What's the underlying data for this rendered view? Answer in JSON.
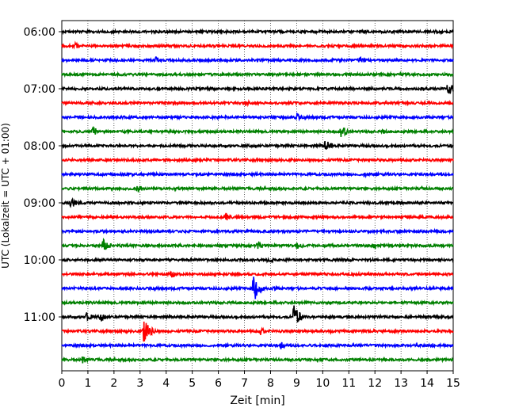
{
  "chart_data": {
    "type": "line",
    "title": "",
    "xlabel": "Zeit  [min]",
    "ylabel": "UTC (Lokalzeit = UTC + 01:00)",
    "xlim": [
      0,
      15
    ],
    "x_ticks": [
      "0",
      "1",
      "2",
      "3",
      "4",
      "5",
      "6",
      "7",
      "8",
      "9",
      "10",
      "11",
      "12",
      "13",
      "14",
      "15"
    ],
    "y_ticks": [
      "06:00",
      "07:00",
      "08:00",
      "09:00",
      "10:00",
      "11:00"
    ],
    "grid": "vertical dotted at each minute",
    "trace_interval_minutes": 15,
    "trace_colors": [
      "#000000",
      "#ff0000",
      "#0000ff",
      "#008000"
    ],
    "traces": [
      {
        "start": "06:00",
        "events": [
          {
            "x": 14.3,
            "amp": 0.15
          }
        ]
      },
      {
        "start": "06:15",
        "events": [
          {
            "x": 0.5,
            "amp": 0.25
          },
          {
            "x": 10.0,
            "amp": 0.1
          }
        ]
      },
      {
        "start": "06:30",
        "events": [
          {
            "x": 3.6,
            "amp": 0.3
          },
          {
            "x": 11.4,
            "amp": 0.3
          }
        ]
      },
      {
        "start": "06:45",
        "events": []
      },
      {
        "start": "07:00",
        "events": [
          {
            "x": 14.8,
            "amp": 0.6
          }
        ]
      },
      {
        "start": "07:15",
        "events": [
          {
            "x": 7.0,
            "amp": 0.3
          },
          {
            "x": 0.4,
            "amp": 0.1
          }
        ]
      },
      {
        "start": "07:30",
        "events": [
          {
            "x": 9.0,
            "amp": 0.3
          }
        ]
      },
      {
        "start": "07:45",
        "events": [
          {
            "x": 1.2,
            "amp": 0.4
          },
          {
            "x": 10.7,
            "amp": 0.55
          },
          {
            "x": 12.3,
            "amp": 0.2
          }
        ]
      },
      {
        "start": "08:00",
        "events": [
          {
            "x": 10.1,
            "amp": 0.5
          },
          {
            "x": 13.3,
            "amp": 0.1
          }
        ]
      },
      {
        "start": "08:15",
        "events": []
      },
      {
        "start": "08:30",
        "events": [
          {
            "x": 11.6,
            "amp": 0.3
          }
        ]
      },
      {
        "start": "08:45",
        "events": [
          {
            "x": 2.9,
            "amp": 0.35
          },
          {
            "x": 13.8,
            "amp": 0.15
          }
        ]
      },
      {
        "start": "09:00",
        "events": [
          {
            "x": 0.35,
            "amp": 0.45
          },
          {
            "x": 2.4,
            "amp": 0.1
          }
        ]
      },
      {
        "start": "09:15",
        "events": [
          {
            "x": 6.3,
            "amp": 0.3
          },
          {
            "x": 2.0,
            "amp": 0.1
          }
        ]
      },
      {
        "start": "09:30",
        "events": [
          {
            "x": 4.3,
            "amp": 0.1
          }
        ]
      },
      {
        "start": "09:45",
        "events": [
          {
            "x": 1.6,
            "amp": 0.55
          },
          {
            "x": 7.5,
            "amp": 0.3
          },
          {
            "x": 9.0,
            "amp": 0.35
          },
          {
            "x": 12.0,
            "amp": 0.3
          }
        ]
      },
      {
        "start": "10:00",
        "events": [
          {
            "x": 7.9,
            "amp": 0.3
          }
        ]
      },
      {
        "start": "10:15",
        "events": [
          {
            "x": 4.2,
            "amp": 0.35
          }
        ]
      },
      {
        "start": "10:30",
        "events": [
          {
            "x": 7.35,
            "amp": 1.1
          },
          {
            "x": 8.1,
            "amp": 0.2
          }
        ]
      },
      {
        "start": "10:45",
        "events": []
      },
      {
        "start": "11:00",
        "events": [
          {
            "x": 0.95,
            "amp": 0.4
          },
          {
            "x": 1.5,
            "amp": 0.35
          },
          {
            "x": 8.9,
            "amp": 1.0
          }
        ]
      },
      {
        "start": "11:15",
        "events": [
          {
            "x": 3.15,
            "amp": 1.2
          },
          {
            "x": 7.6,
            "amp": 0.3
          },
          {
            "x": 10.3,
            "amp": 0.15
          }
        ]
      },
      {
        "start": "11:30",
        "events": [
          {
            "x": 8.4,
            "amp": 0.3
          },
          {
            "x": 14.2,
            "amp": 0.15
          }
        ]
      },
      {
        "start": "11:45",
        "events": [
          {
            "x": 0.8,
            "amp": 0.3
          },
          {
            "x": 2.7,
            "amp": 0.1
          }
        ]
      }
    ]
  }
}
